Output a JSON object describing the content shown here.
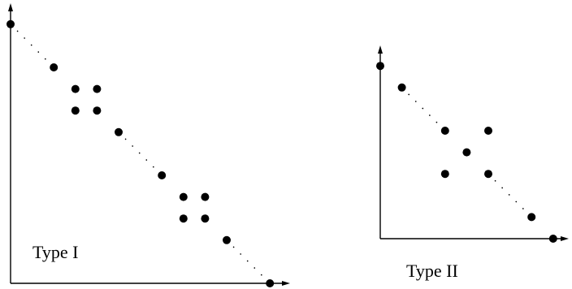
{
  "diagrams": [
    {
      "id": "type-1",
      "label": "Type I",
      "points": [
        [
          0,
          12
        ],
        [
          2,
          10
        ],
        [
          3,
          9
        ],
        [
          4,
          9
        ],
        [
          3,
          8
        ],
        [
          4,
          8
        ],
        [
          5,
          7
        ],
        [
          7,
          5
        ],
        [
          8,
          4
        ],
        [
          9,
          4
        ],
        [
          8,
          3
        ],
        [
          9,
          3
        ],
        [
          10,
          2
        ],
        [
          12,
          0
        ]
      ],
      "dotted_segments": [
        [
          [
            0,
            12
          ],
          [
            2,
            10
          ]
        ],
        [
          [
            5,
            7
          ],
          [
            7,
            5
          ]
        ],
        [
          [
            10,
            2
          ],
          [
            12,
            0
          ]
        ]
      ]
    },
    {
      "id": "type-2",
      "label": "Type II",
      "points": [
        [
          0,
          8
        ],
        [
          1,
          7
        ],
        [
          3,
          5
        ],
        [
          5,
          5
        ],
        [
          4,
          4
        ],
        [
          3,
          3
        ],
        [
          5,
          3
        ],
        [
          7,
          1
        ],
        [
          8,
          0
        ]
      ],
      "dotted_segments": [
        [
          [
            1,
            7
          ],
          [
            3,
            5
          ]
        ],
        [
          [
            5,
            3
          ],
          [
            7,
            1
          ]
        ]
      ]
    }
  ]
}
